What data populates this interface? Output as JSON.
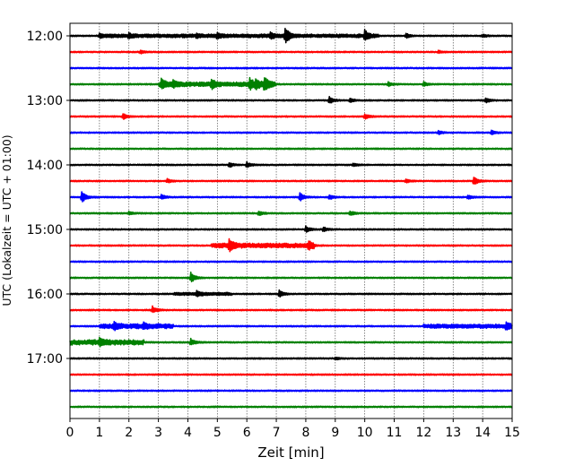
{
  "chart_data": {
    "type": "line",
    "xlabel": "Zeit  [min]",
    "ylabel": "UTC (Lokalzeit = UTC + 01:00)",
    "xlim": [
      0,
      15
    ],
    "x_ticks": [
      0,
      1,
      2,
      3,
      4,
      5,
      6,
      7,
      8,
      9,
      10,
      11,
      12,
      13,
      14,
      15
    ],
    "x_grid": true,
    "y_tick_labels": [
      "12:00",
      "13:00",
      "14:00",
      "15:00",
      "16:00",
      "17:00"
    ],
    "trace_start_time": "12:00",
    "trace_interval_min": 15,
    "trace_count": 24,
    "trace_colors": [
      "#000000",
      "#ff0000",
      "#0000ff",
      "#008000"
    ],
    "events": [
      {
        "trace": 0,
        "t": 1.0,
        "amp": 0.2
      },
      {
        "trace": 0,
        "t": 2.0,
        "amp": 0.25
      },
      {
        "trace": 0,
        "t": 4.3,
        "amp": 0.25
      },
      {
        "trace": 0,
        "t": 5.0,
        "amp": 0.3
      },
      {
        "trace": 0,
        "t": 6.8,
        "amp": 0.3
      },
      {
        "trace": 0,
        "t": 7.3,
        "amp": 1.0
      },
      {
        "trace": 0,
        "t": 10.0,
        "amp": 0.6
      },
      {
        "trace": 0,
        "t": 11.4,
        "amp": 0.3
      },
      {
        "trace": 0,
        "t": 14.0,
        "amp": 0.2
      },
      {
        "trace": 1,
        "t": 2.4,
        "amp": 0.2
      },
      {
        "trace": 1,
        "t": 12.5,
        "amp": 0.15
      },
      {
        "trace": 3,
        "t": 3.1,
        "amp": 0.6
      },
      {
        "trace": 3,
        "t": 3.5,
        "amp": 0.4
      },
      {
        "trace": 3,
        "t": 4.8,
        "amp": 0.55
      },
      {
        "trace": 3,
        "t": 6.1,
        "amp": 0.7
      },
      {
        "trace": 3,
        "t": 6.3,
        "amp": 0.55
      },
      {
        "trace": 3,
        "t": 6.6,
        "amp": 0.85
      },
      {
        "trace": 3,
        "t": 10.8,
        "amp": 0.25
      },
      {
        "trace": 3,
        "t": 12.0,
        "amp": 0.25
      },
      {
        "trace": 4,
        "t": 8.8,
        "amp": 0.45
      },
      {
        "trace": 4,
        "t": 9.5,
        "amp": 0.25
      },
      {
        "trace": 4,
        "t": 14.1,
        "amp": 0.3
      },
      {
        "trace": 5,
        "t": 1.8,
        "amp": 0.35
      },
      {
        "trace": 5,
        "t": 10.0,
        "amp": 0.35
      },
      {
        "trace": 6,
        "t": 12.5,
        "amp": 0.2
      },
      {
        "trace": 6,
        "t": 14.3,
        "amp": 0.25
      },
      {
        "trace": 8,
        "t": 5.4,
        "amp": 0.3
      },
      {
        "trace": 8,
        "t": 6.0,
        "amp": 0.35
      },
      {
        "trace": 8,
        "t": 9.6,
        "amp": 0.2
      },
      {
        "trace": 9,
        "t": 3.3,
        "amp": 0.25
      },
      {
        "trace": 9,
        "t": 11.4,
        "amp": 0.25
      },
      {
        "trace": 9,
        "t": 13.7,
        "amp": 0.55
      },
      {
        "trace": 10,
        "t": 0.4,
        "amp": 0.75
      },
      {
        "trace": 10,
        "t": 3.1,
        "amp": 0.3
      },
      {
        "trace": 10,
        "t": 7.8,
        "amp": 0.55
      },
      {
        "trace": 10,
        "t": 8.8,
        "amp": 0.3
      },
      {
        "trace": 10,
        "t": 13.5,
        "amp": 0.25
      },
      {
        "trace": 11,
        "t": 2.0,
        "amp": 0.2
      },
      {
        "trace": 11,
        "t": 6.4,
        "amp": 0.3
      },
      {
        "trace": 11,
        "t": 9.5,
        "amp": 0.3
      },
      {
        "trace": 12,
        "t": 8.0,
        "amp": 0.4
      },
      {
        "trace": 12,
        "t": 8.6,
        "amp": 0.3
      },
      {
        "trace": 13,
        "t": 5.4,
        "amp": 0.75
      },
      {
        "trace": 13,
        "t": 8.1,
        "amp": 0.5
      },
      {
        "trace": 15,
        "t": 4.1,
        "amp": 0.65
      },
      {
        "trace": 16,
        "t": 4.3,
        "amp": 0.3
      },
      {
        "trace": 16,
        "t": 7.1,
        "amp": 0.5
      },
      {
        "trace": 17,
        "t": 2.8,
        "amp": 0.45
      },
      {
        "trace": 18,
        "t": 1.5,
        "amp": 0.4
      },
      {
        "trace": 18,
        "t": 2.5,
        "amp": 0.3
      },
      {
        "trace": 18,
        "t": 14.8,
        "amp": 0.4
      },
      {
        "trace": 19,
        "t": 1.0,
        "amp": 0.45
      },
      {
        "trace": 19,
        "t": 4.1,
        "amp": 0.45
      },
      {
        "trace": 20,
        "t": 9.0,
        "amp": 0.15
      }
    ],
    "bursts": [
      {
        "trace": 0,
        "t0": 1.0,
        "t1": 10.5,
        "amp": 0.15
      },
      {
        "trace": 3,
        "t0": 3.0,
        "t1": 7.0,
        "amp": 0.2
      },
      {
        "trace": 13,
        "t0": 4.8,
        "t1": 8.3,
        "amp": 0.22
      },
      {
        "trace": 18,
        "t0": 1.0,
        "t1": 3.5,
        "amp": 0.22
      },
      {
        "trace": 18,
        "t0": 12.0,
        "t1": 15.0,
        "amp": 0.18
      },
      {
        "trace": 19,
        "t0": 0.0,
        "t1": 2.5,
        "amp": 0.25
      },
      {
        "trace": 16,
        "t0": 3.5,
        "t1": 5.5,
        "amp": 0.12
      }
    ]
  }
}
